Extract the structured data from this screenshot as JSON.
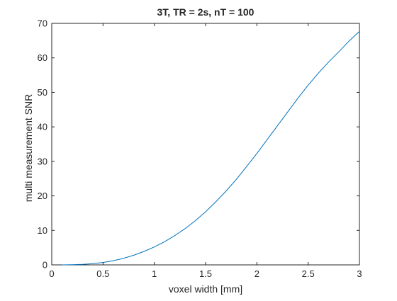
{
  "chart_data": {
    "type": "line",
    "title": "3T, TR = 2s, nT = 100",
    "xlabel": "voxel width [mm]",
    "ylabel": "multi measurement SNR",
    "xlim": [
      0,
      3
    ],
    "ylim": [
      0,
      70
    ],
    "xticks": [
      0,
      0.5,
      1,
      1.5,
      2,
      2.5,
      3
    ],
    "xtick_labels": [
      "0",
      "0.5",
      "1",
      "1.5",
      "2",
      "2.5",
      "3"
    ],
    "yticks": [
      0,
      10,
      20,
      30,
      40,
      50,
      60,
      70
    ],
    "ytick_labels": [
      "0",
      "10",
      "20",
      "30",
      "40",
      "50",
      "60",
      "70"
    ],
    "grid": false,
    "series": [
      {
        "color": "#0072BD",
        "x": [
          0.1,
          0.2,
          0.3,
          0.4,
          0.5,
          0.6,
          0.7,
          0.8,
          0.9,
          1.0,
          1.1,
          1.2,
          1.3,
          1.4,
          1.5,
          1.6,
          1.7,
          1.8,
          1.9,
          2.0,
          2.1,
          2.2,
          2.3,
          2.4,
          2.5,
          2.6,
          2.7,
          2.8,
          2.9,
          3.0
        ],
        "y": [
          0.0,
          0.05,
          0.15,
          0.35,
          0.7,
          1.2,
          1.9,
          2.8,
          3.9,
          5.2,
          6.7,
          8.5,
          10.5,
          12.8,
          15.4,
          18.3,
          21.4,
          24.8,
          28.5,
          32.3,
          36.3,
          40.3,
          44.3,
          48.3,
          52.1,
          55.6,
          58.8,
          61.8,
          64.9,
          67.7
        ]
      }
    ]
  }
}
